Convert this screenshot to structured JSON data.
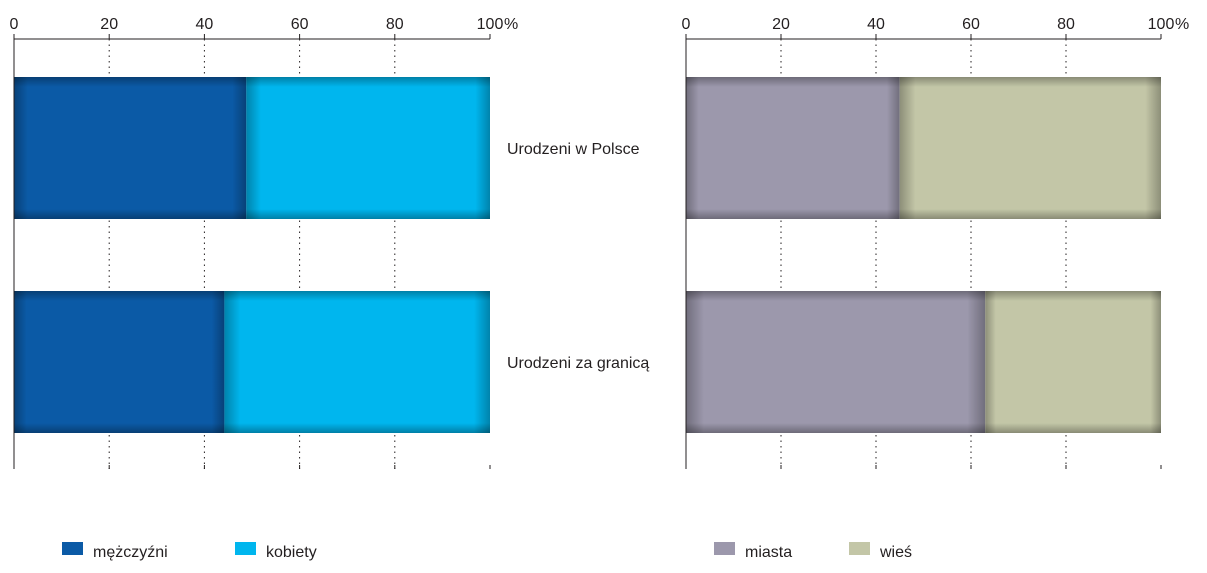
{
  "chart_data": [
    {
      "type": "bar",
      "stacked": true,
      "orientation": "horizontal",
      "title": "",
      "xlabel": "",
      "ylabel": "",
      "unit_label": "%",
      "xlim": [
        0,
        100
      ],
      "ticks": [
        "0",
        "20",
        "40",
        "60",
        "80",
        "100"
      ],
      "grid": true,
      "legend_position": "bottom",
      "categories": [
        "Urodzeni w Polsce",
        "Urodzeni za granicą"
      ],
      "series": [
        {
          "name": "mężczyźni",
          "values": [
            48.8,
            44.2
          ],
          "color": "#0b5aa6"
        },
        {
          "name": "kobiety",
          "values": [
            51.2,
            55.8
          ],
          "color": "#00b6ee"
        }
      ]
    },
    {
      "type": "bar",
      "stacked": true,
      "orientation": "horizontal",
      "title": "",
      "xlabel": "",
      "ylabel": "",
      "unit_label": "%",
      "xlim": [
        0,
        100
      ],
      "ticks": [
        "0",
        "20",
        "40",
        "60",
        "80",
        "100"
      ],
      "grid": true,
      "legend_position": "bottom",
      "categories": [
        "Urodzeni w Polsce",
        "Urodzeni za granicą"
      ],
      "series": [
        {
          "name": "miasta",
          "values": [
            45.0,
            63.0
          ],
          "color": "#9c98ac"
        },
        {
          "name": "wieś",
          "values": [
            55.0,
            37.0
          ],
          "color": "#c3c6a7"
        }
      ]
    }
  ]
}
